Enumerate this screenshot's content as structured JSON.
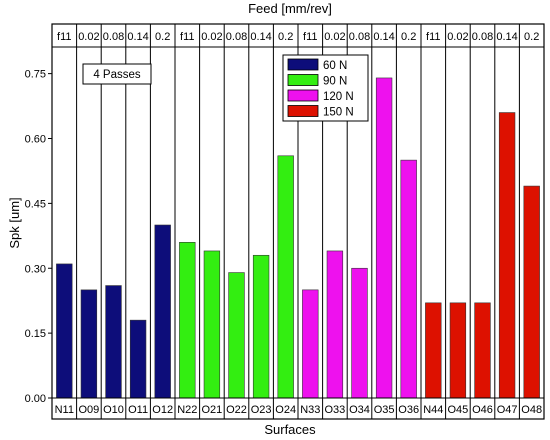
{
  "chart_data": {
    "type": "bar",
    "title": "",
    "top_axis_label": "Feed [mm/rev]",
    "xlabel": "Surfaces",
    "ylabel": "Spk [um]",
    "ylim": [
      0.0,
      0.8
    ],
    "y_ticks": [
      "0.00",
      "0.15",
      "0.30",
      "0.45",
      "0.60",
      "0.75"
    ],
    "annotation": "4 Passes",
    "grid": "vertical separators between categories",
    "legend_position": "top-center",
    "categories": [
      "N11",
      "O09",
      "O10",
      "O11",
      "O12",
      "N22",
      "O21",
      "O22",
      "O23",
      "O24",
      "N33",
      "O33",
      "O34",
      "O35",
      "O36",
      "N44",
      "O45",
      "O46",
      "O47",
      "O48"
    ],
    "top_labels": [
      "f11",
      "0.02",
      "0.08",
      "0.14",
      "0.2",
      "f11",
      "0.02",
      "0.08",
      "0.14",
      "0.2",
      "f11",
      "0.02",
      "0.08",
      "0.14",
      "0.2",
      "f11",
      "0.02",
      "0.08",
      "0.14",
      "0.2"
    ],
    "series": [
      {
        "name": "60 N",
        "color": "#0d0d7a",
        "values": [
          0.31,
          0.25,
          0.26,
          0.18,
          0.4,
          null,
          null,
          null,
          null,
          null,
          null,
          null,
          null,
          null,
          null,
          null,
          null,
          null,
          null,
          null
        ]
      },
      {
        "name": "90 N",
        "color": "#33ee11",
        "values": [
          null,
          null,
          null,
          null,
          null,
          0.36,
          0.34,
          0.29,
          0.33,
          0.56,
          null,
          null,
          null,
          null,
          null,
          null,
          null,
          null,
          null,
          null
        ]
      },
      {
        "name": "120 N",
        "color": "#ee11ee",
        "values": [
          null,
          null,
          null,
          null,
          null,
          null,
          null,
          null,
          null,
          null,
          0.25,
          0.34,
          0.3,
          0.74,
          0.55,
          null,
          null,
          null,
          null,
          null
        ]
      },
      {
        "name": "150 N",
        "color": "#dd1100",
        "values": [
          null,
          null,
          null,
          null,
          null,
          null,
          null,
          null,
          null,
          null,
          null,
          null,
          null,
          null,
          null,
          0.22,
          0.22,
          0.22,
          0.66,
          0.49
        ]
      }
    ]
  }
}
